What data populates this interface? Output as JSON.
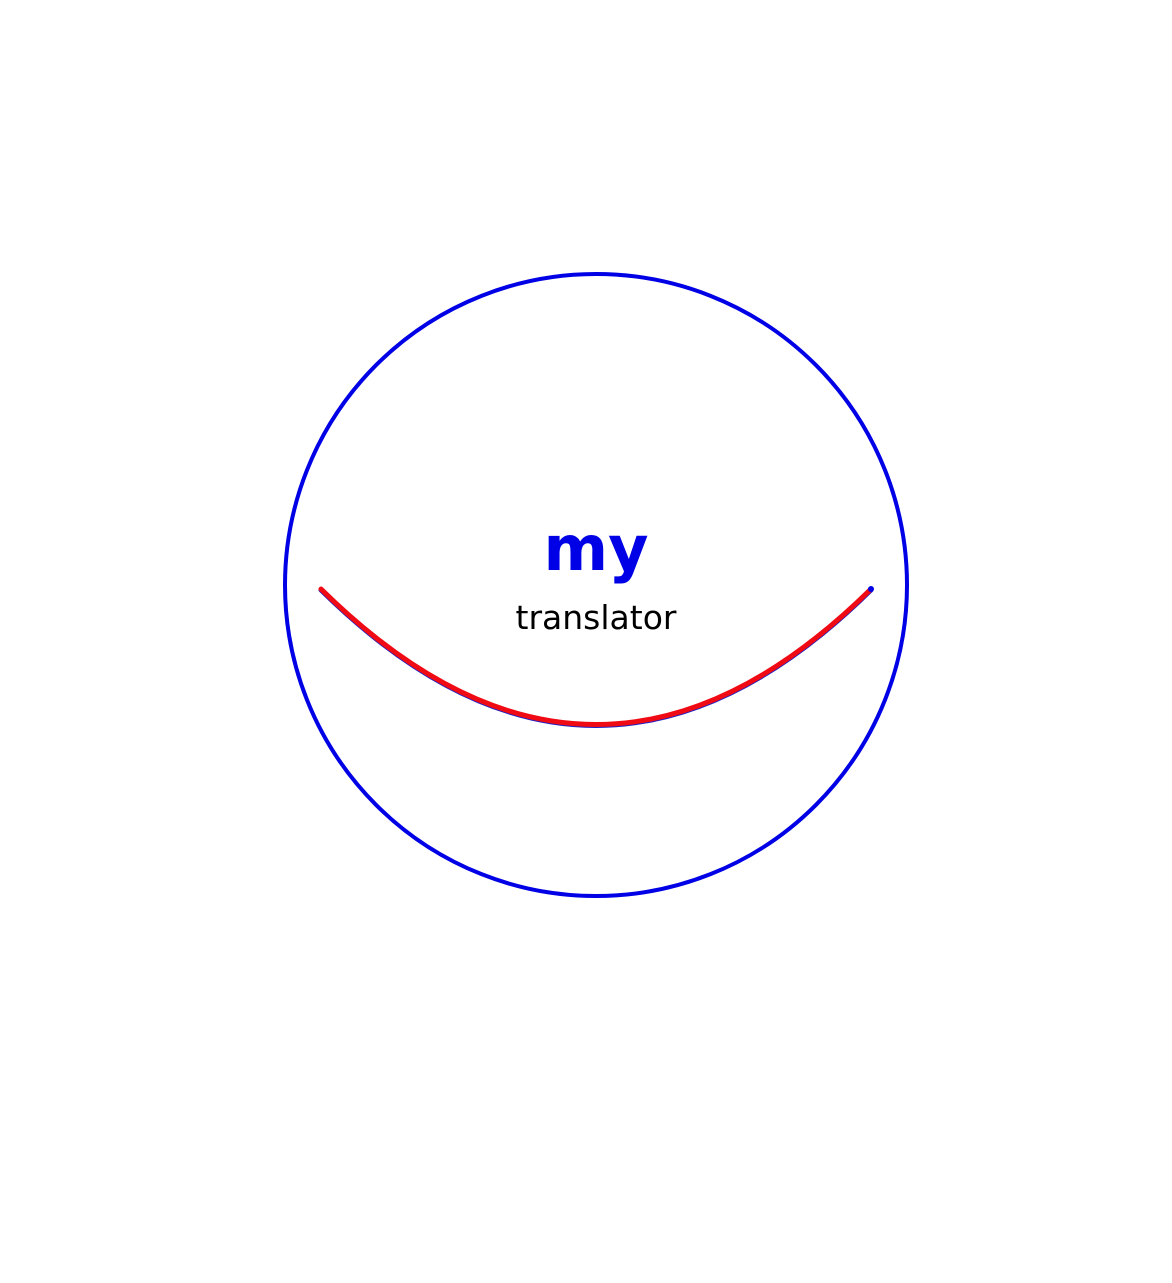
{
  "logo": {
    "word": "my",
    "tagline": "translator",
    "colors": {
      "ring": "#0000e6",
      "word": "#0000e6",
      "tagline": "#000000",
      "smile": "#f00a14",
      "smile_shadow": "#2020c0",
      "background": "#ffffff"
    }
  }
}
